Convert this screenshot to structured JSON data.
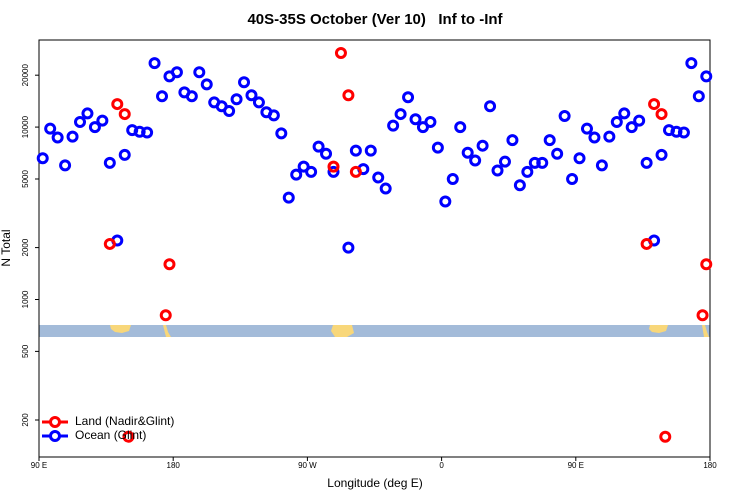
{
  "chart_data": {
    "type": "scatter",
    "title": "40S-35S October (Ver 10)   Inf to -Inf",
    "x_label": "Longitude (deg E)",
    "y_label": "N Total",
    "xlim": [
      90,
      540
    ],
    "xticks": [
      {
        "value": 90,
        "label": "90 E"
      },
      180,
      {
        "value": 270,
        "label": "90 W"
      },
      {
        "value": 360,
        "label": "0"
      },
      {
        "value": 450,
        "label": "90 E"
      },
      {
        "value": 540,
        "label": "180"
      }
    ],
    "ylim": [
      122,
      32000
    ],
    "yticks": [
      200,
      500,
      1000,
      2000,
      5000,
      10000,
      20000
    ],
    "y_scale": "log",
    "legend": "lower left",
    "series": [
      {
        "name": "Ocean (Glint)",
        "color": "#0000ff",
        "x": [
          92.5,
          97.5,
          102.5,
          107.5,
          112.5,
          117.5,
          122.5,
          127.5,
          132.5,
          137.5,
          142.5,
          147.5,
          152.5,
          157.5,
          162.5,
          167.5,
          172.5,
          177.5,
          182.5,
          187.5,
          192.5,
          197.5,
          202.5,
          207.5,
          212.5,
          217.5,
          222.5,
          227.5,
          232.5,
          237.5,
          242.5,
          247.5,
          252.5,
          257.5,
          262.5,
          267.5,
          272.5,
          277.5,
          282.5,
          287.5,
          297.5,
          302.5,
          307.5,
          312.5,
          317.5,
          322.5,
          327.5,
          332.5,
          337.5,
          342.5,
          347.5,
          352.5,
          357.5,
          362.5,
          367.5,
          372.5,
          377.5,
          382.5,
          387.5,
          392.5,
          397.5,
          402.5,
          407.5,
          412.5,
          417.5,
          422.5,
          427.5,
          432.5,
          437.5,
          442.5,
          447.5,
          452.5,
          457.5,
          462.5,
          467.5,
          472.5,
          477.5,
          482.5,
          487.5,
          492.5,
          497.5,
          502.5,
          507.5,
          512.5,
          517.5,
          522.5,
          527.5,
          532.5,
          537.5
        ],
        "values": [
          6600,
          9800,
          8700,
          6000,
          8800,
          10700,
          12000,
          10000,
          10900,
          6200,
          2200,
          6900,
          9600,
          9400,
          9300,
          23500,
          15100,
          19700,
          20800,
          15900,
          15100,
          20800,
          17700,
          13900,
          13200,
          12400,
          14500,
          18200,
          15300,
          13900,
          12200,
          11700,
          9200,
          3900,
          5300,
          5900,
          5500,
          7700,
          7000,
          5500,
          2000,
          7300,
          5700,
          7300,
          5100,
          4400,
          10200,
          11900,
          14900,
          11100,
          10000,
          10700,
          7600,
          3700,
          5000,
          10000,
          7100,
          6400,
          7800,
          13200,
          5600,
          6300,
          8400,
          4600,
          5500,
          6200,
          6200,
          8400,
          7000,
          11600,
          5000,
          6600,
          9800,
          8700,
          6000,
          8800,
          10700,
          12000,
          10000,
          10900,
          6200,
          2200,
          6900,
          9600,
          9400,
          9300,
          23500,
          15100,
          19700
        ]
      },
      {
        "name": "Land (Nadir&Glint)",
        "color": "#ff0000",
        "x": [
          137.5,
          142.5,
          147.5,
          150,
          175,
          177.5,
          287.5,
          292.5,
          297.5,
          302.5,
          497.5,
          502.5,
          507.5,
          510,
          535,
          537.5
        ],
        "values": [
          2100,
          13600,
          11900,
          160,
          810,
          1600,
          5900,
          26900,
          15300,
          5500,
          2100,
          13600,
          11900,
          160,
          810,
          1600
        ]
      }
    ]
  }
}
